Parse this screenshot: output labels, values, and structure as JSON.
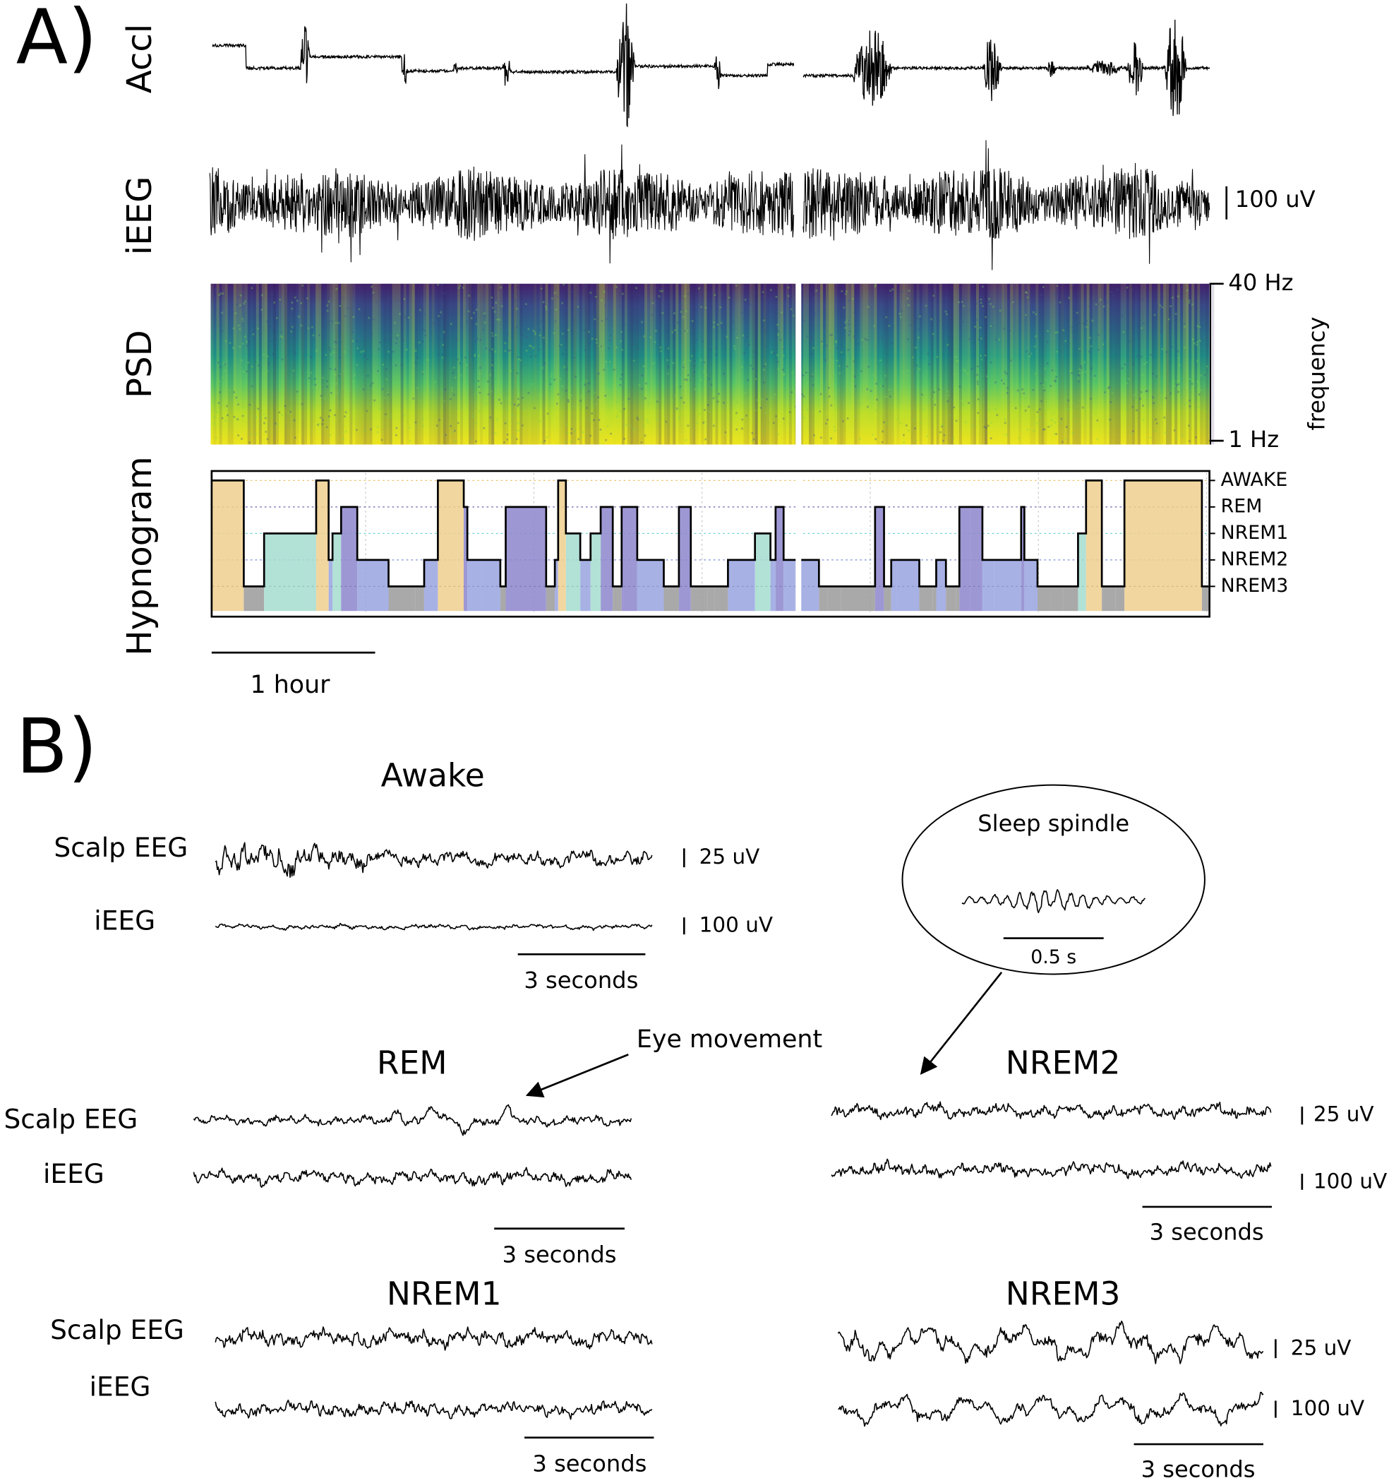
{
  "panel_a": {
    "label": "A)",
    "track_labels": [
      "Accl",
      "iEEG",
      "PSD",
      "Hypnogram"
    ],
    "ieeg_scale": "100 uV",
    "psd_max": "40 Hz",
    "psd_min": "1 Hz",
    "psd_axis": "frequency",
    "stages": [
      "AWAKE",
      "REM",
      "NREM1",
      "NREM2",
      "NREM3"
    ],
    "time_scale": "1 hour"
  },
  "panel_b": {
    "label": "B)",
    "states": [
      {
        "title": "Awake",
        "channel_labels": [
          "Scalp EEG",
          "iEEG"
        ],
        "amplitude_scales": [
          "25 uV",
          "100 uV"
        ],
        "time_scale": "3 seconds"
      },
      {
        "title": "REM",
        "channel_labels": [
          "Scalp EEG",
          "iEEG"
        ],
        "time_scale": "3 seconds"
      },
      {
        "title": "NREM2",
        "amplitude_scales": [
          "25 uV",
          "100 uV"
        ],
        "time_scale": "3 seconds"
      },
      {
        "title": "NREM1",
        "channel_labels": [
          "Scalp EEG",
          "iEEG"
        ],
        "time_scale": "3 seconds"
      },
      {
        "title": "NREM3",
        "amplitude_scales": [
          "25 uV",
          "100 uV"
        ],
        "time_scale": "3 seconds"
      }
    ],
    "annotations": {
      "eye_movement": "Eye movement",
      "sleep_spindle": "Sleep spindle",
      "spindle_scale": "0.5 s"
    }
  }
}
